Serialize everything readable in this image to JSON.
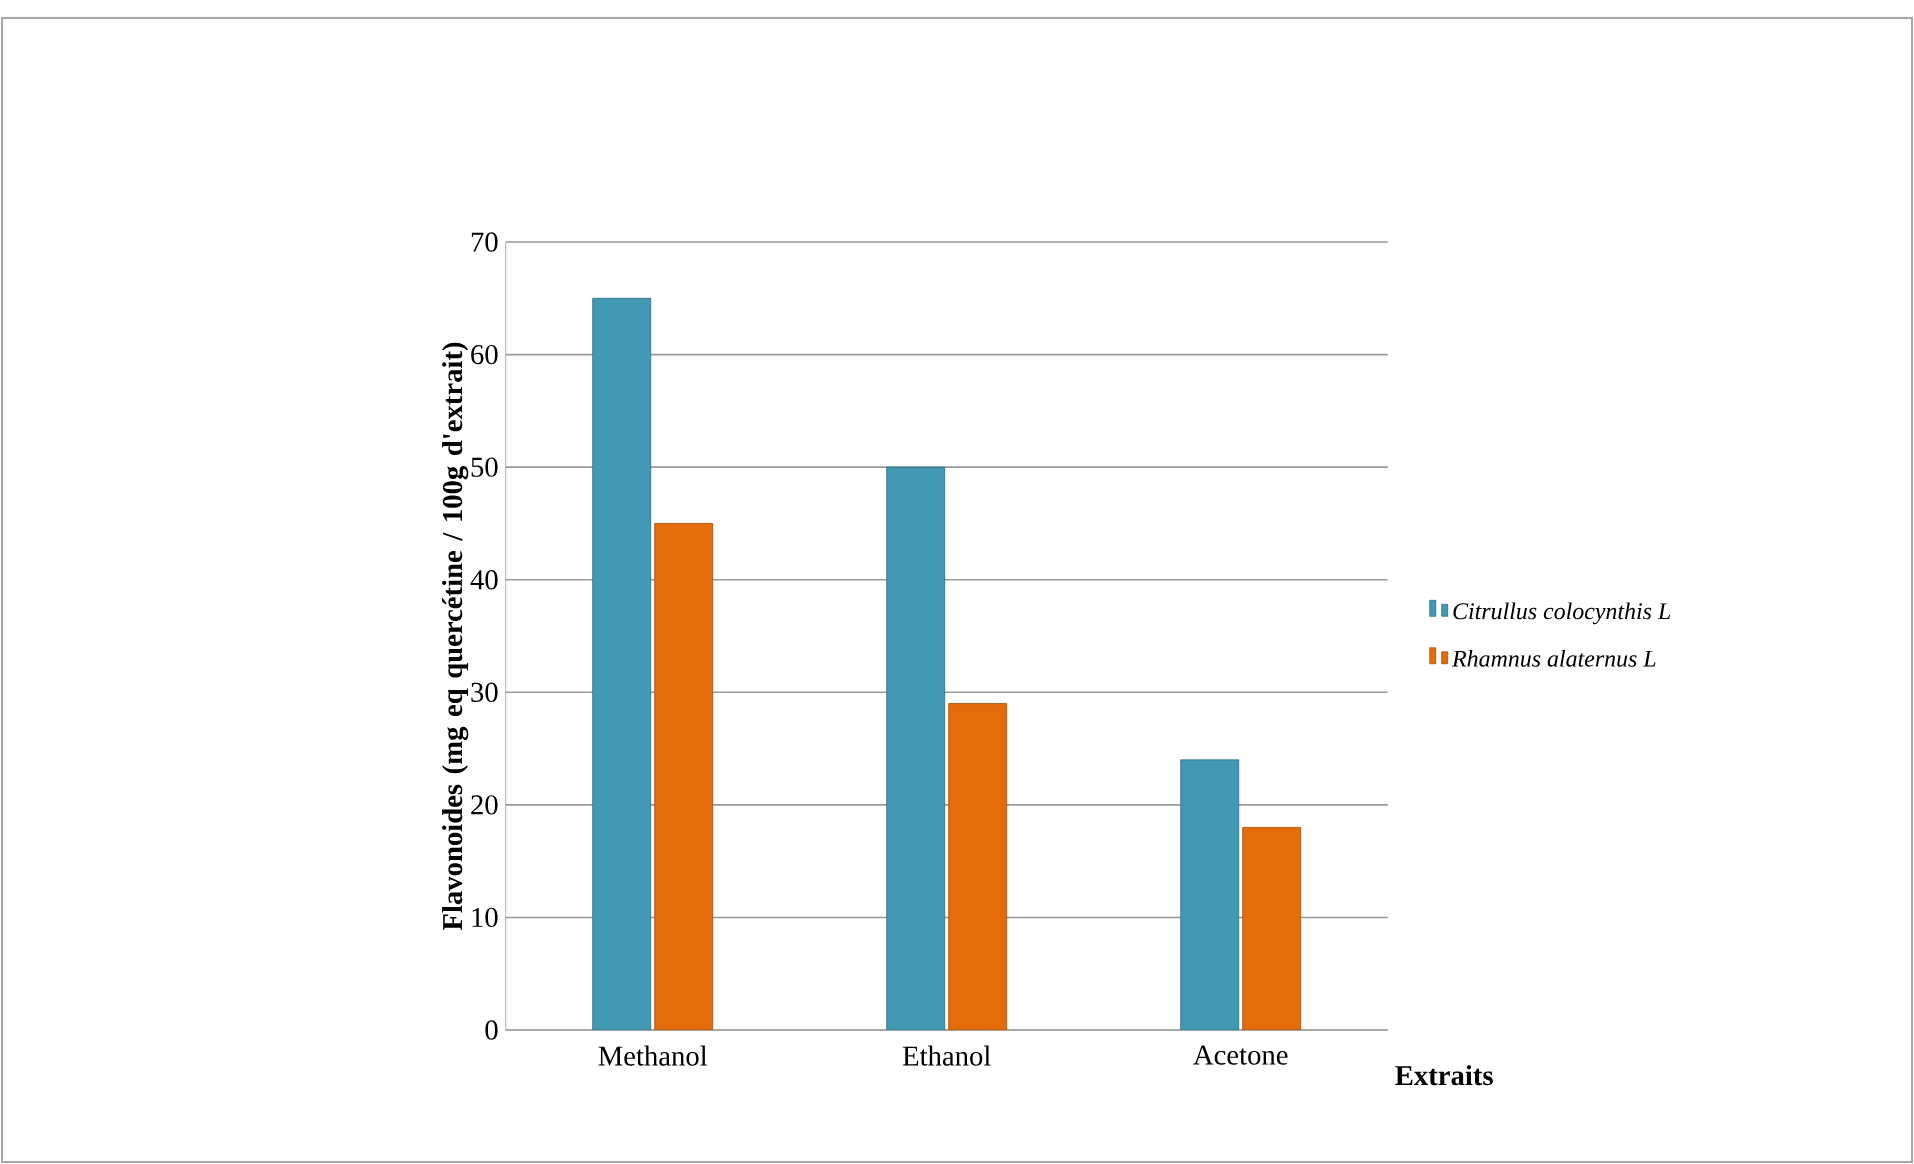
{
  "chart_data": {
    "type": "bar",
    "xlabel": "Extraits",
    "ylabel": "Flavonoides (mg eq quercétine / 100g d'extrait)",
    "categories": [
      "Methanol",
      "Ethanol",
      "Acetone"
    ],
    "series": [
      {
        "name": "Citrullus colocynthis L",
        "color": "#4299b3",
        "values": [
          65,
          50,
          24
        ]
      },
      {
        "name": "Rhamnus alaternus L",
        "color": "#e46c0a",
        "values": [
          45,
          29,
          18
        ]
      }
    ],
    "ylim": [
      0,
      70
    ],
    "yticks": [
      0,
      10,
      20,
      30,
      40,
      50,
      60,
      70
    ],
    "grid": "y",
    "legend": "right"
  }
}
